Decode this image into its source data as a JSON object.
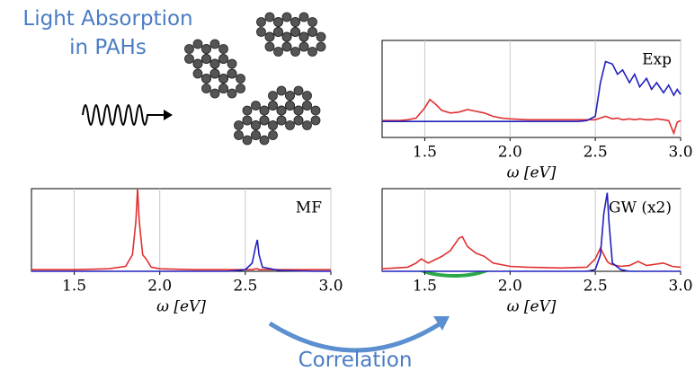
{
  "title_lines": [
    "Light Absorption",
    "in PAHs"
  ],
  "arrow_label": "Correlation",
  "chart_data": [
    {
      "type": "line",
      "annotation": "Exp",
      "xlabel": "ω [eV]",
      "xlim": [
        1.25,
        3.0
      ],
      "ylim": [
        -0.15,
        1
      ],
      "xticks": [
        1.5,
        {
          "value": 2,
          "label": "2.0"
        },
        2.5,
        {
          "value": 3,
          "label": "3.0"
        }
      ],
      "grid": true,
      "x": [
        1.25,
        1.3,
        1.35,
        1.4,
        1.45,
        1.5,
        1.53,
        1.56,
        1.6,
        1.65,
        1.7,
        1.75,
        1.8,
        1.85,
        1.9,
        1.95,
        2.0,
        2.1,
        2.2,
        2.3,
        2.4,
        2.45,
        2.5,
        2.53,
        2.56,
        2.6,
        2.63,
        2.66,
        2.7,
        2.73,
        2.76,
        2.8,
        2.83,
        2.86,
        2.9,
        2.93,
        2.96,
        2.98,
        3.0
      ],
      "series": [
        {
          "color": "#e03030",
          "values": [
            0.05,
            0.05,
            0.05,
            0.06,
            0.08,
            0.2,
            0.3,
            0.25,
            0.17,
            0.14,
            0.15,
            0.18,
            0.16,
            0.14,
            0.1,
            0.08,
            0.07,
            0.06,
            0.06,
            0.06,
            0.06,
            0.06,
            0.06,
            0.08,
            0.1,
            0.07,
            0.08,
            0.06,
            0.07,
            0.06,
            0.07,
            0.06,
            0.06,
            0.07,
            0.06,
            0.05,
            -0.1,
            0.03,
            0.05
          ]
        },
        {
          "color": "#2020c0",
          "values": [
            0.04,
            0.04,
            0.04,
            0.04,
            0.04,
            0.04,
            0.04,
            0.04,
            0.04,
            0.04,
            0.04,
            0.04,
            0.04,
            0.04,
            0.04,
            0.04,
            0.04,
            0.04,
            0.04,
            0.04,
            0.04,
            0.05,
            0.1,
            0.5,
            0.75,
            0.72,
            0.6,
            0.65,
            0.5,
            0.6,
            0.45,
            0.55,
            0.42,
            0.5,
            0.38,
            0.47,
            0.35,
            0.42,
            0.36
          ]
        }
      ]
    },
    {
      "type": "line",
      "annotation": "MF",
      "xlabel": "ω [eV]",
      "xlim": [
        1.25,
        3.0
      ],
      "ylim": [
        0,
        1
      ],
      "xticks": [
        1.5,
        {
          "value": 2,
          "label": "2.0"
        },
        2.5,
        {
          "value": 3,
          "label": "3.0"
        }
      ],
      "grid": true,
      "x": [
        1.25,
        1.5,
        1.7,
        1.8,
        1.84,
        1.86,
        1.87,
        1.88,
        1.9,
        1.92,
        1.95,
        2.0,
        2.2,
        2.4,
        2.5,
        2.54,
        2.56,
        2.57,
        2.58,
        2.6,
        2.7,
        2.9,
        3.0
      ],
      "series": [
        {
          "color": "#e03030",
          "values": [
            0.02,
            0.02,
            0.03,
            0.06,
            0.2,
            0.6,
            1.0,
            0.6,
            0.2,
            0.15,
            0.05,
            0.03,
            0.02,
            0.02,
            0.02,
            0.02,
            0.03,
            0.03,
            0.02,
            0.02,
            0.02,
            0.02,
            0.02
          ]
        },
        {
          "color": "#2020c0",
          "values": [
            0,
            0,
            0,
            0,
            0,
            0,
            0,
            0,
            0,
            0,
            0,
            0,
            0,
            0,
            0.02,
            0.1,
            0.3,
            0.38,
            0.2,
            0.05,
            0.01,
            0,
            0
          ]
        }
      ]
    },
    {
      "type": "line",
      "annotation": "GW (x2)",
      "xlabel": "ω [eV]",
      "xlim": [
        1.25,
        3.0
      ],
      "ylim": [
        0,
        1
      ],
      "xticks": [
        1.5,
        {
          "value": 2,
          "label": "2.0"
        },
        2.5,
        {
          "value": 3,
          "label": "3.0"
        }
      ],
      "grid": true,
      "x": [
        1.25,
        1.4,
        1.45,
        1.48,
        1.52,
        1.6,
        1.65,
        1.7,
        1.72,
        1.75,
        1.8,
        1.85,
        1.9,
        2.0,
        2.1,
        2.3,
        2.45,
        2.5,
        2.53,
        2.55,
        2.57,
        2.58,
        2.6,
        2.65,
        2.7,
        2.75,
        2.8,
        2.9,
        2.95,
        3.0
      ],
      "series": [
        {
          "color": "#e03030",
          "values": [
            0.03,
            0.05,
            0.1,
            0.15,
            0.1,
            0.18,
            0.25,
            0.4,
            0.42,
            0.3,
            0.22,
            0.18,
            0.1,
            0.06,
            0.05,
            0.04,
            0.05,
            0.15,
            0.28,
            0.2,
            0.12,
            0.1,
            0.08,
            0.06,
            0.07,
            0.12,
            0.07,
            0.1,
            0.06,
            0.05
          ]
        },
        {
          "color": "#2020c0",
          "values": [
            0,
            0,
            0,
            0,
            0,
            0,
            0,
            0,
            0,
            0,
            0,
            0,
            0,
            0,
            0,
            0,
            0,
            0.02,
            0.2,
            0.7,
            0.95,
            0.6,
            0.1,
            0.02,
            0,
            0,
            0,
            0,
            0,
            0
          ]
        }
      ]
    }
  ]
}
